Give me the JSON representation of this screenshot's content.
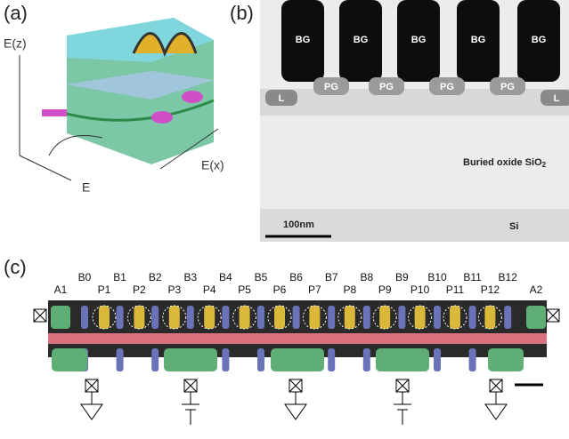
{
  "panel_a": {
    "label": "(a)",
    "axis_z": "E(z)",
    "axis_x": "E(x)",
    "axis_e": "E"
  },
  "panel_b": {
    "label": "(b)",
    "bg": [
      "BG",
      "BG",
      "BG",
      "BG",
      "BG"
    ],
    "pg": [
      "PG",
      "PG",
      "PG",
      "PG"
    ],
    "leads": [
      "L",
      "L"
    ],
    "oxide": "Buried oxide SiO",
    "oxide_sub": "2",
    "scale_bar": "100nm",
    "substrate": "Si"
  },
  "panel_c": {
    "label": "(c)",
    "a": [
      "A1",
      "A2"
    ],
    "b": [
      "B0",
      "B1",
      "B2",
      "B3",
      "B4",
      "B5",
      "B6",
      "B7",
      "B8",
      "B9",
      "B10",
      "B11",
      "B12"
    ],
    "p": [
      "P1",
      "P2",
      "P3",
      "P4",
      "P5",
      "P6",
      "P7",
      "P8",
      "P9",
      "P10",
      "P11",
      "P12"
    ]
  }
}
